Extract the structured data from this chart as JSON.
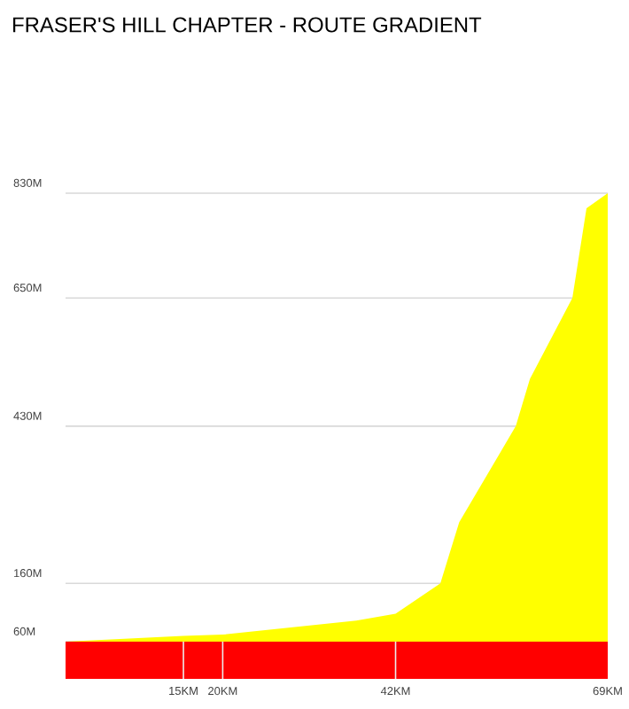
{
  "chart_data": {
    "type": "area",
    "title": "FRASER'S HILL CHAPTER - ROUTE GRADIENT",
    "x": [
      0,
      15,
      20,
      37,
      42,
      47.7,
      50.1,
      57.3,
      59.1,
      64.5,
      66.3,
      69
    ],
    "values": [
      60,
      70,
      72,
      96,
      108,
      160,
      265,
      430,
      511,
      650,
      804,
      830
    ],
    "color": "#ffff00",
    "xlim": [
      0,
      69
    ],
    "ylim": [
      60,
      830
    ],
    "xticks": [
      {
        "value": 15,
        "label": "15KM"
      },
      {
        "value": 20,
        "label": "20KM"
      },
      {
        "value": 42,
        "label": "42KM"
      },
      {
        "value": 69,
        "label": "69KM"
      }
    ],
    "yticks": [
      {
        "value": 60,
        "label": "60M"
      },
      {
        "value": 160,
        "label": "160M"
      },
      {
        "value": 430,
        "label": "430M"
      },
      {
        "value": 650,
        "label": "650M"
      },
      {
        "value": 830,
        "label": "830M"
      }
    ],
    "grid": "y"
  }
}
